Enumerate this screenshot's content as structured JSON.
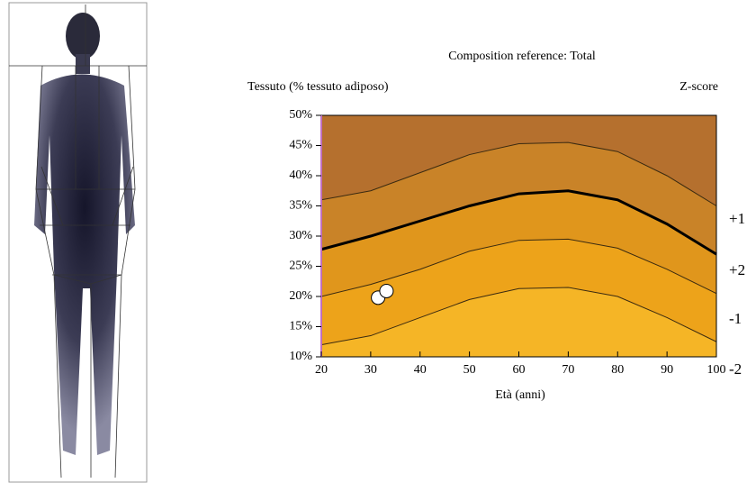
{
  "chart_data": {
    "type": "line",
    "title": "Composition reference: Total",
    "y_label": "Tessuto (% tessuto adiposo)",
    "y2_label": "Z-score",
    "x_label": "Età (anni)",
    "x": [
      20,
      30,
      40,
      50,
      60,
      70,
      80,
      90,
      100
    ],
    "series": [
      {
        "color": "#3a2a10",
        "values": [
          36,
          37.5,
          40.5,
          43.5,
          45.3,
          45.5,
          44,
          40,
          35
        ]
      },
      {
        "color": "#000000",
        "values": [
          27.8,
          30,
          32.5,
          35,
          37,
          37.5,
          36,
          32,
          27
        ]
      },
      {
        "color": "#3a2a10",
        "values": [
          20,
          22,
          24.5,
          27.5,
          29.3,
          29.5,
          28,
          24.5,
          20.5
        ]
      },
      {
        "color": "#3a2a10",
        "values": [
          12,
          13.5,
          16.5,
          19.5,
          21.3,
          21.5,
          20,
          16.5,
          12.5
        ]
      }
    ],
    "points": {
      "x": [
        31.5,
        33.2
      ],
      "values": [
        19.8,
        20.9
      ]
    },
    "zscore_labels": [
      "+1",
      "+2",
      "-1",
      "-2"
    ],
    "xlim": [
      20,
      100
    ],
    "xticks": [
      20,
      30,
      40,
      50,
      60,
      70,
      80,
      90,
      100
    ],
    "ylim": [
      10,
      50
    ],
    "yticks": [
      {
        "value": 10,
        "label": "10%"
      },
      {
        "value": 15,
        "label": "15%"
      },
      {
        "value": 20,
        "label": "20%"
      },
      {
        "value": 25,
        "label": "25%"
      },
      {
        "value": 30,
        "label": "30%"
      },
      {
        "value": 35,
        "label": "35%"
      },
      {
        "value": 40,
        "label": "40%"
      },
      {
        "value": 45,
        "label": "45%"
      },
      {
        "value": 50,
        "label": "50%"
      }
    ]
  }
}
